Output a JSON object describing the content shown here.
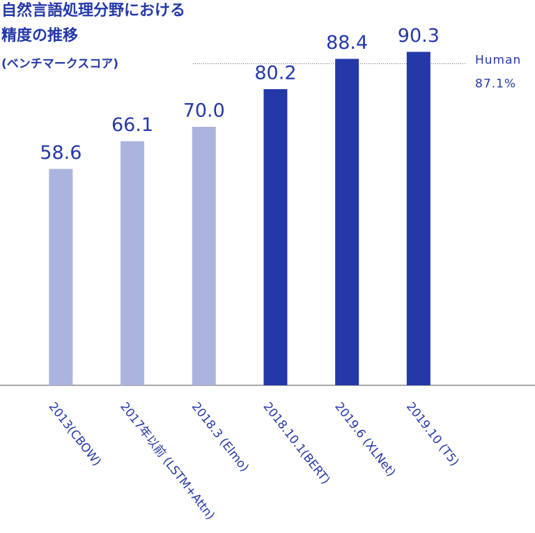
{
  "chart_data": {
    "type": "bar",
    "title": [
      "自然言語処理分野における",
      "精度の推移"
    ],
    "subtitle": "(ベンチマークスコア)",
    "categories": [
      "2013(CBOW)",
      "2017年以前 (LSTM+Attn)",
      "2018.3 (Elmo)",
      "2018.10.1(BERT)",
      "2019.6 (XLNet)",
      "2019.10 (T5)"
    ],
    "values": [
      58.6,
      66.1,
      70.0,
      80.2,
      88.4,
      90.3
    ],
    "value_labels": [
      "58.6",
      "66.1",
      "70.0",
      "80.2",
      "88.4",
      "90.3"
    ],
    "colors": [
      "#aab4de",
      "#aab4de",
      "#aab4de",
      "#2438a8",
      "#2438a8",
      "#2438a8"
    ],
    "ylim": [
      0,
      100
    ],
    "reference_line": {
      "name": "Human",
      "value": 87.1,
      "label": "87.1%"
    }
  }
}
